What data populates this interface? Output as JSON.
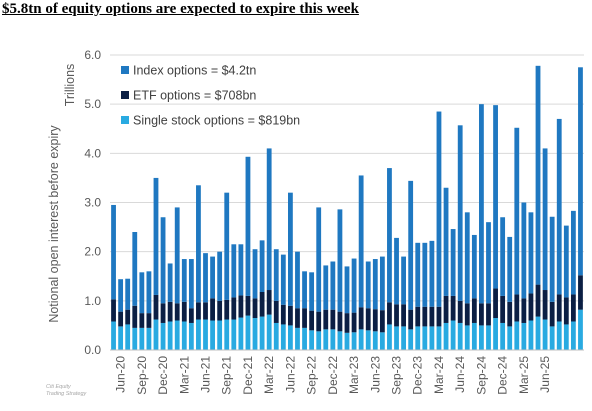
{
  "headline": "$5.8tn of equity options are expected to expire this week",
  "footnote": [
    "Citi Equity",
    "Trading Strategy"
  ],
  "colors": {
    "index": "#1f78c1",
    "etf": "#0b1f44",
    "single": "#29aae1"
  },
  "chart_data": {
    "type": "bar",
    "stacked": true,
    "title": "$5.8tn of equity options are expected to expire this week",
    "ylabel": "Notional open interest before expiry",
    "unit_label": "Trillions",
    "ylim": [
      0,
      6
    ],
    "y_ticks": [
      "0.0",
      "1.0",
      "2.0",
      "3.0",
      "4.0",
      "5.0",
      "6.0"
    ],
    "y_tick_values": [
      0,
      1,
      2,
      3,
      4,
      5,
      6
    ],
    "x_tick_labels": [
      "Jun-20",
      "Sep-20",
      "Dec-20",
      "Mar-21",
      "Jun-21",
      "Sep-21",
      "Dec-21",
      "Mar-22",
      "Jun-22",
      "Sep-22",
      "Dec-22",
      "Mar-23",
      "Jun-23",
      "Sep-23",
      "Dec-23",
      "Mar-24",
      "Jun-24",
      "Sep-24",
      "Dec-24",
      "Mar-25",
      "Jun-25"
    ],
    "grid": "horizontal",
    "legend_position": "top-left",
    "series": [
      {
        "name": "Single stock options = $819bn",
        "key": "single",
        "values": [
          0.58,
          0.48,
          0.52,
          0.45,
          0.45,
          0.45,
          0.62,
          0.55,
          0.58,
          0.6,
          0.58,
          0.55,
          0.62,
          0.62,
          0.6,
          0.6,
          0.62,
          0.62,
          0.66,
          0.7,
          0.65,
          0.68,
          0.72,
          0.55,
          0.52,
          0.5,
          0.45,
          0.45,
          0.4,
          0.38,
          0.42,
          0.42,
          0.38,
          0.35,
          0.36,
          0.42,
          0.4,
          0.38,
          0.36,
          0.52,
          0.48,
          0.48,
          0.42,
          0.48,
          0.48,
          0.48,
          0.48,
          0.55,
          0.6,
          0.55,
          0.5,
          0.55,
          0.5,
          0.5,
          0.65,
          0.55,
          0.48,
          0.58,
          0.55,
          0.6,
          0.68,
          0.62,
          0.48,
          0.58,
          0.52,
          0.58,
          0.82
        ]
      },
      {
        "name": "ETF options = $708bn",
        "key": "etf",
        "values": [
          0.45,
          0.3,
          0.3,
          0.45,
          0.3,
          0.3,
          0.5,
          0.4,
          0.4,
          0.35,
          0.4,
          0.3,
          0.35,
          0.35,
          0.45,
          0.4,
          0.4,
          0.45,
          0.45,
          0.4,
          0.4,
          0.5,
          0.5,
          0.45,
          0.4,
          0.4,
          0.4,
          0.4,
          0.4,
          0.4,
          0.4,
          0.4,
          0.4,
          0.4,
          0.4,
          0.45,
          0.45,
          0.45,
          0.45,
          0.45,
          0.45,
          0.45,
          0.4,
          0.4,
          0.4,
          0.4,
          0.4,
          0.55,
          0.5,
          0.45,
          0.45,
          0.5,
          0.45,
          0.45,
          0.6,
          0.55,
          0.5,
          0.55,
          0.5,
          0.55,
          0.65,
          0.6,
          0.5,
          0.55,
          0.55,
          0.55,
          0.7
        ]
      },
      {
        "name": "Index options = $4.2tn",
        "key": "index",
        "values": [
          1.92,
          0.66,
          0.63,
          1.5,
          0.83,
          0.85,
          2.38,
          1.75,
          0.78,
          1.95,
          0.87,
          1.0,
          2.38,
          1.0,
          0.85,
          1.0,
          2.18,
          1.08,
          1.04,
          2.83,
          1.0,
          1.05,
          2.88,
          1.05,
          1.02,
          2.3,
          1.15,
          0.75,
          0.78,
          2.12,
          0.9,
          0.98,
          2.08,
          0.95,
          1.1,
          2.68,
          0.95,
          1.02,
          1.09,
          2.73,
          1.35,
          0.97,
          2.62,
          1.3,
          1.3,
          1.34,
          3.97,
          2.2,
          1.36,
          3.57,
          1.85,
          1.29,
          4.05,
          1.65,
          3.73,
          1.6,
          1.32,
          3.39,
          1.95,
          1.65,
          4.45,
          2.88,
          1.73,
          3.57,
          1.46,
          1.7,
          4.23
        ]
      }
    ]
  },
  "legend": {
    "index": "Index options = $4.2tn",
    "etf": "ETF options = $708bn",
    "single": "Single stock options = $819bn"
  }
}
